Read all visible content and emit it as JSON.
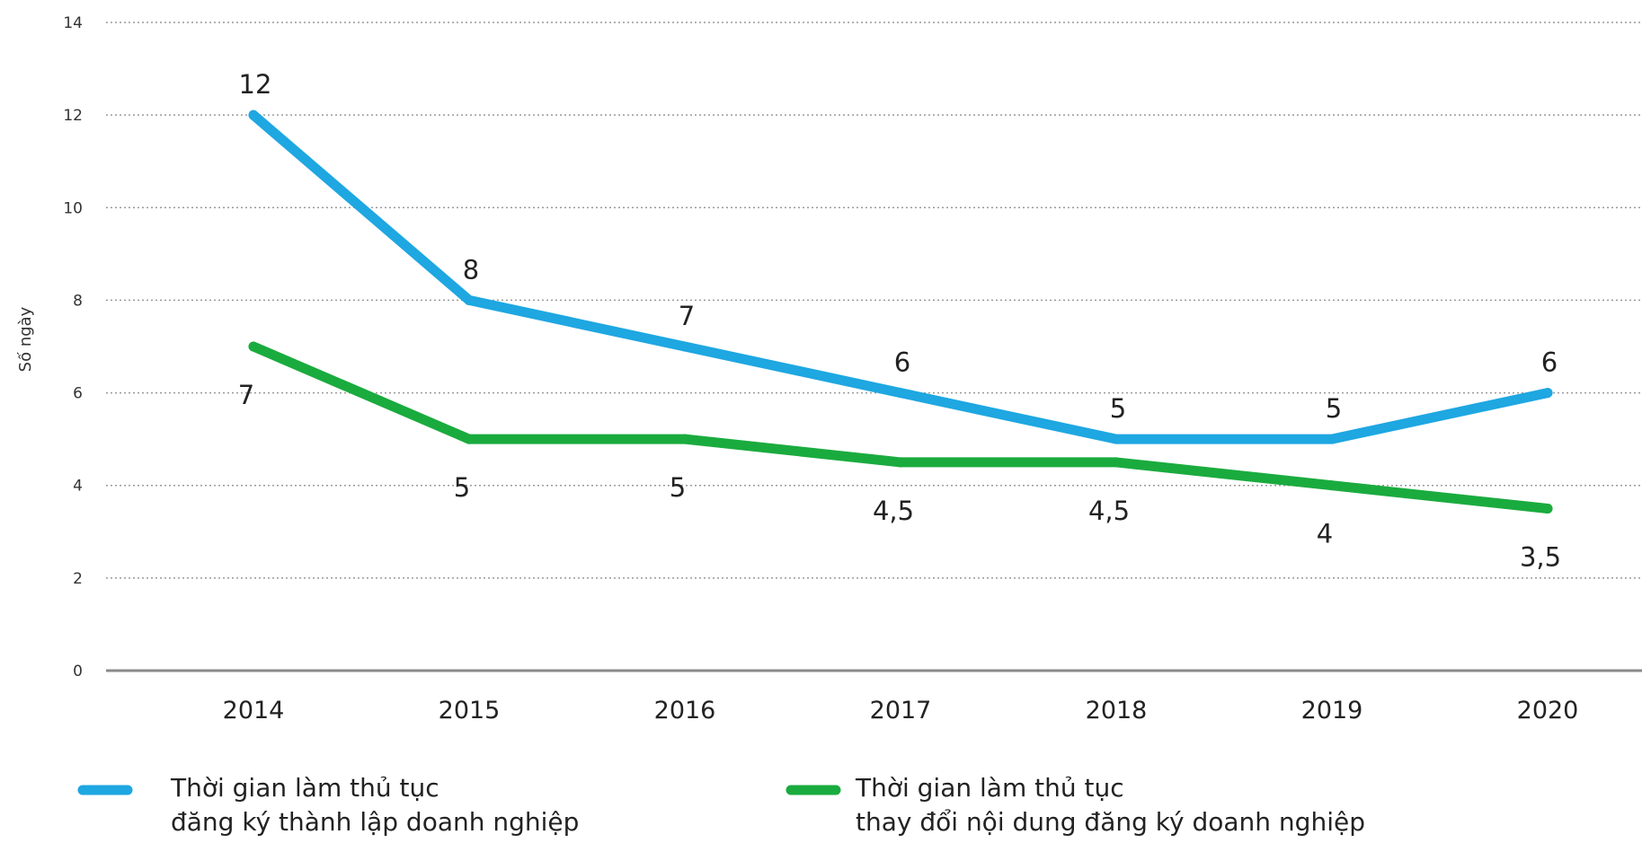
{
  "chart_data": {
    "type": "line",
    "categories": [
      "2014",
      "2015",
      "2016",
      "2017",
      "2018",
      "2019",
      "2020"
    ],
    "ylabel": "Số ngày",
    "ylim": [
      0,
      14
    ],
    "yticks": [
      0,
      2,
      4,
      6,
      8,
      10,
      12,
      14
    ],
    "grid": true,
    "legend_position": "bottom",
    "series": [
      {
        "name": "Thời gian làm thủ tục đăng ký thành lập doanh nghiệp",
        "name_lines": [
          "Thời gian làm thủ tục",
          "đăng ký thành lập doanh nghiệp"
        ],
        "color": "#1ea7e1",
        "values": [
          12,
          8,
          7,
          6,
          5,
          5,
          6
        ],
        "labels": [
          "12",
          "8",
          "7",
          "6",
          "5",
          "5",
          "6"
        ]
      },
      {
        "name": "Thời gian làm thủ tục thay đổi nội dung đăng ký doanh nghiệp",
        "name_lines": [
          "Thời gian làm thủ tục",
          "thay đổi nội dung đăng ký doanh nghiệp"
        ],
        "color": "#1aab3e",
        "values": [
          7,
          5,
          5,
          4.5,
          4.5,
          4,
          3.5
        ],
        "labels": [
          "7",
          "5",
          "5",
          "4,5",
          "4,5",
          "4",
          "3,5"
        ]
      }
    ]
  }
}
